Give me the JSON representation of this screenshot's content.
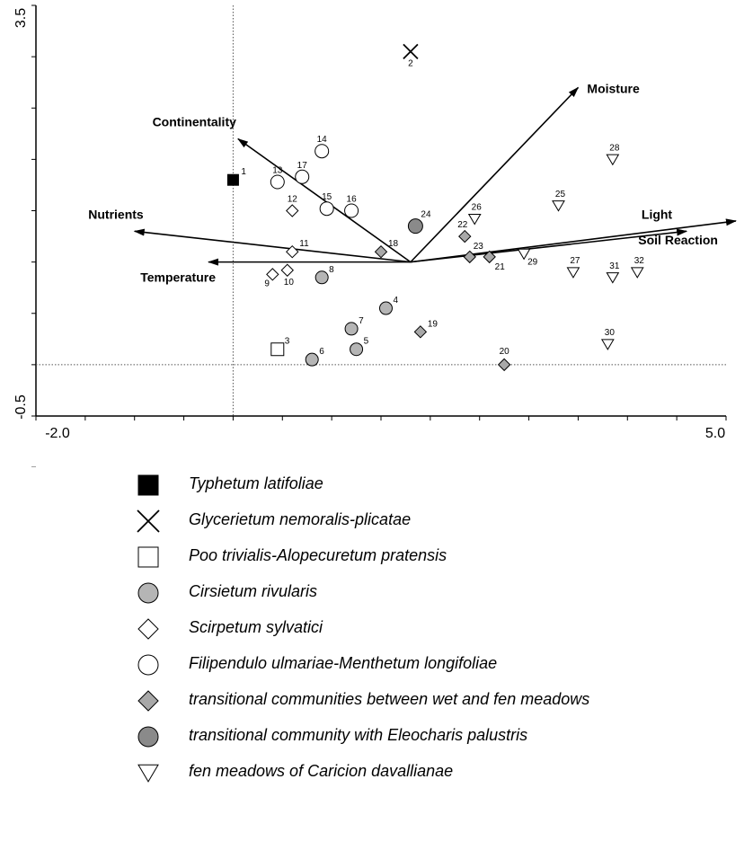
{
  "chart_data": {
    "type": "scatter",
    "title": "",
    "xlabel": "",
    "ylabel": "",
    "xlim": [
      -2.0,
      5.0
    ],
    "ylim": [
      -0.5,
      3.5
    ],
    "x_tick_labels": [
      "-2.0",
      "5.0"
    ],
    "y_tick_labels": [
      "3.5",
      "-0.5"
    ],
    "reference_lines": {
      "x": 0,
      "y": 0
    },
    "origin_vectors": [
      1.8,
      1.0
    ],
    "vectors": [
      {
        "name": "Moisture",
        "x": 3.5,
        "y": 2.7
      },
      {
        "name": "Continentality",
        "x": 0.05,
        "y": 2.2
      },
      {
        "name": "Nutrients",
        "x": -1.0,
        "y": 1.3
      },
      {
        "name": "Temperature",
        "x": -0.25,
        "y": 1.0
      },
      {
        "name": "Light",
        "x": 4.6,
        "y": 1.3
      },
      {
        "name": "Soil Reaction",
        "x": 5.1,
        "y": 1.4
      }
    ],
    "series": [
      {
        "name": "Typhetum latifoliae",
        "marker": "filled-square",
        "points": [
          {
            "label": "1",
            "x": 0.0,
            "y": 1.8
          }
        ]
      },
      {
        "name": "Glycerietum nemoralis-plicatae",
        "marker": "x-cross",
        "points": [
          {
            "label": "2",
            "x": 1.8,
            "y": 3.05
          }
        ]
      },
      {
        "name": "Poo trivialis-Alopecuretum pratensis",
        "marker": "open-square",
        "points": [
          {
            "label": "3",
            "x": 0.45,
            "y": 0.15
          }
        ]
      },
      {
        "name": "Cirsietum rivularis",
        "marker": "gray-circle",
        "points": [
          {
            "label": "4",
            "x": 1.55,
            "y": 0.55
          },
          {
            "label": "5",
            "x": 1.25,
            "y": 0.15
          },
          {
            "label": "6",
            "x": 0.8,
            "y": 0.05
          },
          {
            "label": "7",
            "x": 1.2,
            "y": 0.35
          },
          {
            "label": "8",
            "x": 0.9,
            "y": 0.85
          }
        ]
      },
      {
        "name": "Scirpetum sylvatici",
        "marker": "open-diamond",
        "points": [
          {
            "label": "9",
            "x": 0.4,
            "y": 0.88
          },
          {
            "label": "10",
            "x": 0.55,
            "y": 0.92
          },
          {
            "label": "11",
            "x": 0.6,
            "y": 1.1
          },
          {
            "label": "12",
            "x": 0.6,
            "y": 1.5
          }
        ]
      },
      {
        "name": "Filipendulo ulmariae-Menthetum longifoliae",
        "marker": "open-circle",
        "points": [
          {
            "label": "13",
            "x": 0.45,
            "y": 1.78
          },
          {
            "label": "14",
            "x": 0.9,
            "y": 2.08
          },
          {
            "label": "15",
            "x": 0.95,
            "y": 1.52
          },
          {
            "label": "16",
            "x": 1.2,
            "y": 1.5
          },
          {
            "label": "17",
            "x": 0.7,
            "y": 1.83
          }
        ]
      },
      {
        "name": "transitional communities between wet and fen meadows",
        "marker": "gray-diamond",
        "points": [
          {
            "label": "18",
            "x": 1.5,
            "y": 1.1
          },
          {
            "label": "19",
            "x": 1.9,
            "y": 0.32
          },
          {
            "label": "20",
            "x": 2.75,
            "y": 0.0
          },
          {
            "label": "21",
            "x": 2.6,
            "y": 1.05
          },
          {
            "label": "22",
            "x": 2.35,
            "y": 1.25
          },
          {
            "label": "23",
            "x": 2.4,
            "y": 1.05
          }
        ]
      },
      {
        "name": "transitional community with Eleocharis palustris",
        "marker": "dark-circle",
        "points": [
          {
            "label": "24",
            "x": 1.85,
            "y": 1.35
          }
        ]
      },
      {
        "name": "fen meadows of Caricion davallianae",
        "marker": "open-triangle-down",
        "points": [
          {
            "label": "25",
            "x": 3.3,
            "y": 1.55
          },
          {
            "label": "26",
            "x": 2.45,
            "y": 1.42
          },
          {
            "label": "27",
            "x": 3.45,
            "y": 0.9
          },
          {
            "label": "28",
            "x": 3.85,
            "y": 2.0
          },
          {
            "label": "29",
            "x": 2.95,
            "y": 1.08
          },
          {
            "label": "30",
            "x": 3.8,
            "y": 0.2
          },
          {
            "label": "31",
            "x": 3.85,
            "y": 0.85
          },
          {
            "label": "32",
            "x": 4.1,
            "y": 0.9
          }
        ]
      }
    ]
  },
  "colors": {
    "filled": "#000000",
    "gray_circle": "#b5b5b5",
    "gray_diamond": "#a8a8a8",
    "dark_circle": "#8a8a8a",
    "open": "#ffffff",
    "stroke": "#000000"
  }
}
